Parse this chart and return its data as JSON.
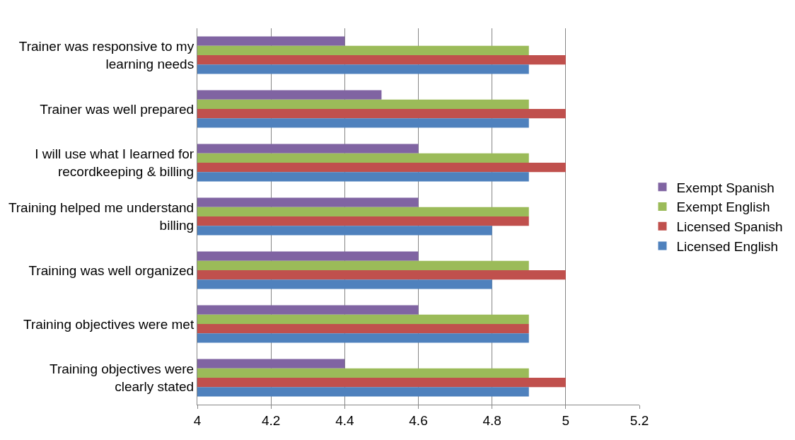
{
  "chart_data": {
    "type": "bar",
    "orientation": "horizontal",
    "categories": [
      "Trainer was responsive to my learning needs",
      "Trainer was well prepared",
      "I will use what I learned for recordkeeping & billing",
      "Training helped me understand billing",
      "Training was well organized",
      "Training objectives were met",
      "Training objectives were clearly stated"
    ],
    "series": [
      {
        "name": "Exempt Spanish",
        "color": "#8064a2",
        "values": [
          4.4,
          4.5,
          4.6,
          4.6,
          4.6,
          4.6,
          4.4
        ]
      },
      {
        "name": "Exempt English",
        "color": "#9bbb59",
        "values": [
          4.9,
          4.9,
          4.9,
          4.9,
          4.9,
          4.9,
          4.9
        ]
      },
      {
        "name": "Licensed Spanish",
        "color": "#c0504d",
        "values": [
          5.0,
          5.0,
          5.0,
          4.9,
          5.0,
          4.9,
          5.0
        ]
      },
      {
        "name": "Licensed English",
        "color": "#4f81bd",
        "values": [
          4.9,
          4.9,
          4.9,
          4.8,
          4.8,
          4.9,
          4.9
        ]
      }
    ],
    "xlim": [
      4,
      5.2
    ],
    "xticks": [
      4,
      4.2,
      4.4,
      4.6,
      4.8,
      5,
      5.2
    ],
    "grid": "x",
    "legend": "right"
  }
}
